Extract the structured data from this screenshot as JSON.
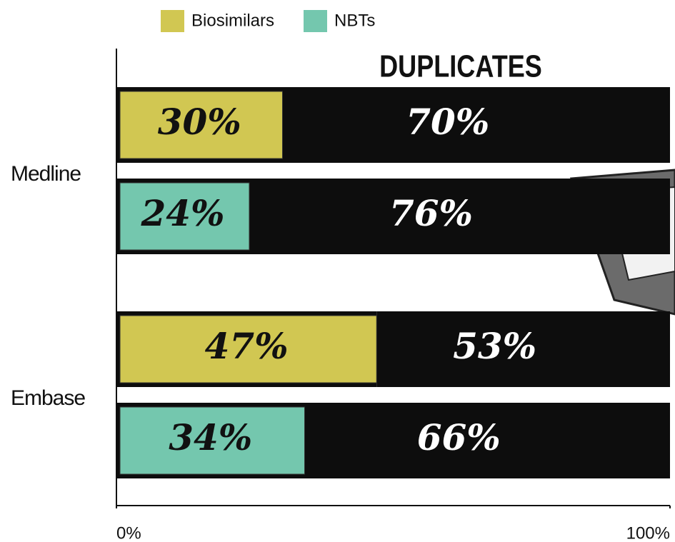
{
  "chart_data": {
    "type": "bar",
    "orientation": "horizontal",
    "categories": [
      "Medline",
      "Embase"
    ],
    "series": [
      {
        "name": "Biosimilars",
        "color": "#d1c752",
        "values": [
          30,
          47
        ],
        "value_labels": [
          "30%",
          "47%"
        ]
      },
      {
        "name": "NBTs",
        "color": "#74c7ae",
        "values": [
          24,
          34
        ],
        "value_labels": [
          "24%",
          "34%"
        ]
      }
    ],
    "duplicates": {
      "label": "DUPLICATES",
      "color": "#0d0d0d",
      "series": [
        {
          "values": [
            70,
            53
          ],
          "value_labels": [
            "70%",
            "53%"
          ]
        },
        {
          "values": [
            76,
            66
          ],
          "value_labels": [
            "76%",
            "66%"
          ]
        }
      ]
    },
    "xlim": [
      0,
      100
    ],
    "xticks": [
      {
        "value": 0,
        "label": "0%"
      },
      {
        "value": 100,
        "label": "100%"
      }
    ],
    "legend": "top"
  }
}
